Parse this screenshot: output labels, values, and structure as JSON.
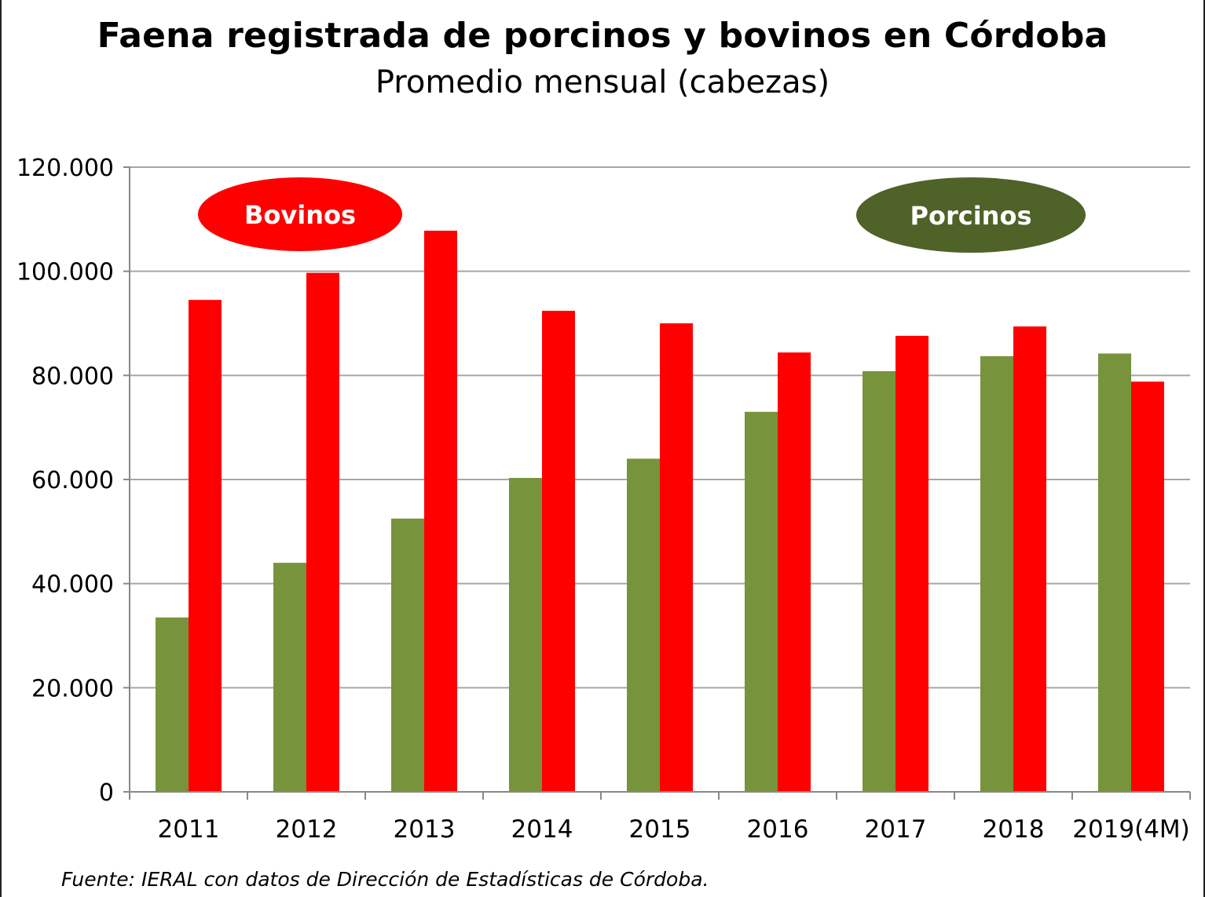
{
  "header": {
    "title": "Faena registrada de porcinos y bovinos en Córdoba",
    "subtitle": "Promedio mensual (cabezas)"
  },
  "footer": {
    "source": "Fuente: IERAL con datos de Dirección de Estadísticas de Córdoba."
  },
  "colors": {
    "porcinos": "#77933c",
    "bovinos": "#ff0000",
    "porcinos_badge": "#4f6228",
    "bovinos_badge": "#ff0000",
    "gridline": "#a6a6a6",
    "axis": "#888888"
  },
  "chart_data": {
    "type": "bar",
    "title": "Faena registrada de porcinos y bovinos en Córdoba",
    "subtitle": "Promedio mensual (cabezas)",
    "categories": [
      "2011",
      "2012",
      "2013",
      "2014",
      "2015",
      "2016",
      "2017",
      "2018",
      "2019(4M)"
    ],
    "series": [
      {
        "name": "Porcinos",
        "color": "#77933c",
        "values": [
          33500,
          44000,
          52500,
          60300,
          64000,
          73000,
          80800,
          83700,
          84200
        ]
      },
      {
        "name": "Bovinos",
        "color": "#ff0000",
        "values": [
          94500,
          99700,
          107800,
          92400,
          90000,
          84400,
          87600,
          89400,
          78800
        ]
      }
    ],
    "ylim": [
      0,
      120000
    ],
    "yticks": [
      0,
      20000,
      40000,
      60000,
      80000,
      100000,
      120000
    ],
    "ytick_labels": [
      "0",
      "20.000",
      "40.000",
      "60.000",
      "80.000",
      "100.000",
      "120.000"
    ],
    "xlabel": "",
    "ylabel": "",
    "grid": true,
    "legend": {
      "style": "labels inside plot",
      "entries": [
        {
          "label": "Bovinos",
          "placement": "top-left"
        },
        {
          "label": "Porcinos",
          "placement": "top-right"
        }
      ]
    }
  }
}
